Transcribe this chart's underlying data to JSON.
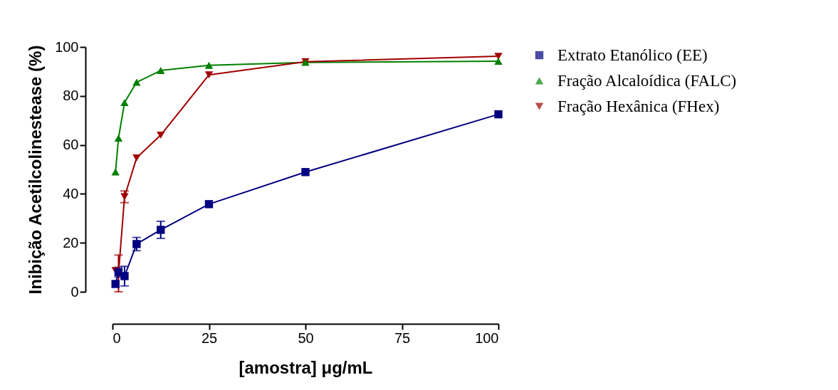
{
  "chart_data": {
    "type": "line",
    "xlabel": "[amostra] μg/mL",
    "ylabel": "Inibição Acetilcolinestease (%)",
    "xlim": [
      0,
      100
    ],
    "xticks": [
      0,
      25,
      50,
      75,
      100
    ],
    "ylim": [
      0,
      100
    ],
    "yticks": [
      0,
      20,
      40,
      60,
      80,
      100
    ],
    "grid": false,
    "legend": "right",
    "line_style": "solid",
    "x": [
      0.78,
      1.56,
      3.125,
      6.25,
      12.5,
      25,
      50,
      100
    ],
    "series": [
      {
        "name": "Extrato Etanólico (EE)",
        "color": "#000080",
        "marker": "square",
        "values": [
          3.2,
          8,
          6.4,
          19.5,
          25.3,
          35.8,
          48.9,
          72.5
        ],
        "errors": [
          null,
          2,
          4,
          2.7,
          3.5,
          null,
          null,
          null
        ]
      },
      {
        "name": "Fração Alcaloídica (FALC)",
        "color": "#008000",
        "marker": "triangle",
        "values": [
          49,
          62.8,
          77.3,
          85.6,
          90.4,
          92.5,
          93.7,
          94.2
        ],
        "errors": [
          null,
          null,
          null,
          null,
          null,
          null,
          null,
          null
        ]
      },
      {
        "name": "Fração Hexânica (FHex)",
        "color": "#a00000",
        "marker": "triangle-down",
        "values": [
          8.7,
          7.5,
          38.8,
          54.7,
          64,
          88.6,
          94,
          96.2
        ],
        "errors": [
          null,
          7.5,
          2.4,
          null,
          null,
          null,
          null,
          null
        ]
      }
    ]
  }
}
